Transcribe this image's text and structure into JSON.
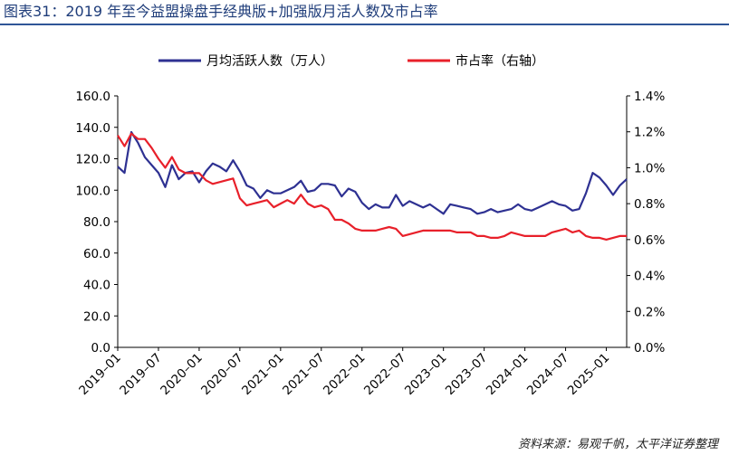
{
  "header": {
    "title": "图表31：2019 年至今益盟操盘手经典版+加强版月活人数及市占率"
  },
  "footer": {
    "source": "资料来源：易观千帆，太平洋证券整理"
  },
  "colors": {
    "series_mau": "#2e3192",
    "series_share": "#e8202a",
    "title": "#1f3d7a"
  },
  "chart_data": {
    "type": "line",
    "title": "",
    "xlabel": "",
    "ylabel": "",
    "x_ticks": [
      "2019–01",
      "2019–07",
      "2020–01",
      "2020–07",
      "2021–01",
      "2021–07",
      "2022–01",
      "2022–07",
      "2023–01",
      "2023–07",
      "2024–01",
      "2024–07",
      "2025–01"
    ],
    "y_left_ticks": [
      "160.0",
      "140.0",
      "120.0",
      "100.0",
      "80.0",
      "60.0",
      "40.0",
      "20.0",
      "0.0"
    ],
    "y_right_ticks": [
      "1.4%",
      "1.2%",
      "1.0%",
      "0.8%",
      "0.6%",
      "0.4%",
      "0.2%",
      "0.0%"
    ],
    "ylim_left": [
      0,
      160
    ],
    "ylim_right": [
      0,
      1.4
    ],
    "x_start": "2019-01",
    "n_points": 76,
    "legend_position": "top",
    "grid": false,
    "series": [
      {
        "name": "月均活跃人数（万人）",
        "axis": "left",
        "values": [
          115,
          111,
          137,
          130,
          121,
          116,
          111,
          102,
          116,
          107,
          111,
          112,
          105,
          112,
          117,
          115,
          112,
          119,
          112,
          103,
          101,
          95,
          100,
          98,
          98,
          100,
          102,
          106,
          99,
          100,
          104,
          104,
          103,
          96,
          101,
          99,
          92,
          88,
          91,
          89,
          89,
          97,
          90,
          93,
          91,
          89,
          91,
          88,
          85,
          91,
          90,
          89,
          88,
          85,
          86,
          88,
          86,
          87,
          88,
          91,
          88,
          87,
          89,
          91,
          93,
          91,
          90,
          87,
          88,
          98,
          111,
          108,
          103,
          97,
          103,
          107
        ]
      },
      {
        "name": "市占率（右轴）",
        "axis": "right",
        "values": [
          1.18,
          1.12,
          1.19,
          1.16,
          1.16,
          1.11,
          1.05,
          1.0,
          1.06,
          0.99,
          0.97,
          0.97,
          0.97,
          0.93,
          0.91,
          0.92,
          0.93,
          0.94,
          0.83,
          0.79,
          0.8,
          0.81,
          0.82,
          0.78,
          0.8,
          0.82,
          0.8,
          0.85,
          0.8,
          0.78,
          0.79,
          0.77,
          0.71,
          0.71,
          0.69,
          0.66,
          0.65,
          0.65,
          0.65,
          0.66,
          0.67,
          0.66,
          0.62,
          0.63,
          0.64,
          0.65,
          0.65,
          0.65,
          0.65,
          0.65,
          0.64,
          0.64,
          0.64,
          0.62,
          0.62,
          0.61,
          0.61,
          0.62,
          0.64,
          0.63,
          0.62,
          0.62,
          0.62,
          0.62,
          0.64,
          0.65,
          0.66,
          0.64,
          0.65,
          0.62,
          0.61,
          0.61,
          0.6,
          0.61,
          0.62,
          0.62
        ]
      }
    ]
  }
}
